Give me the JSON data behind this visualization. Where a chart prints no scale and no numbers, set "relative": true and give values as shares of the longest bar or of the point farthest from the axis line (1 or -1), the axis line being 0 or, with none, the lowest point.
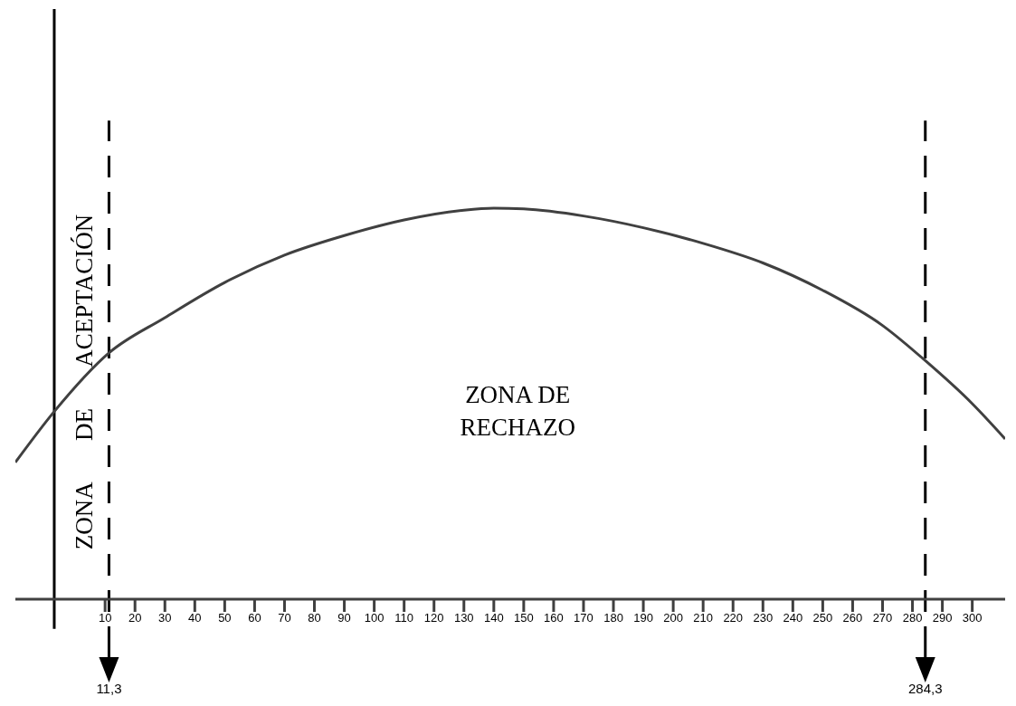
{
  "chart_data": {
    "type": "line",
    "relative": true,
    "x": [
      -20,
      -7,
      11.3,
      30,
      50,
      70,
      90,
      110,
      130,
      140,
      150,
      170,
      190,
      210,
      230,
      250,
      270,
      284.3,
      300,
      311
    ],
    "series": [
      {
        "color": "#404040",
        "values": [
          0.35,
          0.48,
          0.63,
          0.72,
          0.81,
          0.88,
          0.93,
          0.97,
          0.995,
          1,
          0.998,
          0.98,
          0.95,
          0.91,
          0.86,
          0.79,
          0.7,
          0.61,
          0.5,
          0.41
        ]
      }
    ],
    "xlim": [
      -20,
      311
    ],
    "xticks": [
      10,
      20,
      30,
      40,
      50,
      60,
      70,
      80,
      90,
      100,
      110,
      120,
      130,
      140,
      150,
      160,
      170,
      180,
      190,
      200,
      210,
      220,
      230,
      240,
      250,
      260,
      270,
      280,
      290,
      300
    ],
    "ref_lines": [
      {
        "axis": "x",
        "value": -7,
        "color": "#000000",
        "line_style": "solid"
      },
      {
        "axis": "x",
        "value": 11.3,
        "label": "11,3",
        "color": "#000000",
        "line_style": "dashed"
      },
      {
        "axis": "x",
        "value": 284.3,
        "label": "284,3",
        "color": "#000000",
        "line_style": "dashed"
      }
    ],
    "annotations": [
      "ZONA DE ACEPTACIÓN",
      "ZONA DE RECHAZO"
    ],
    "grid": false,
    "legend": false,
    "marker": "none",
    "line_style": "solid"
  }
}
